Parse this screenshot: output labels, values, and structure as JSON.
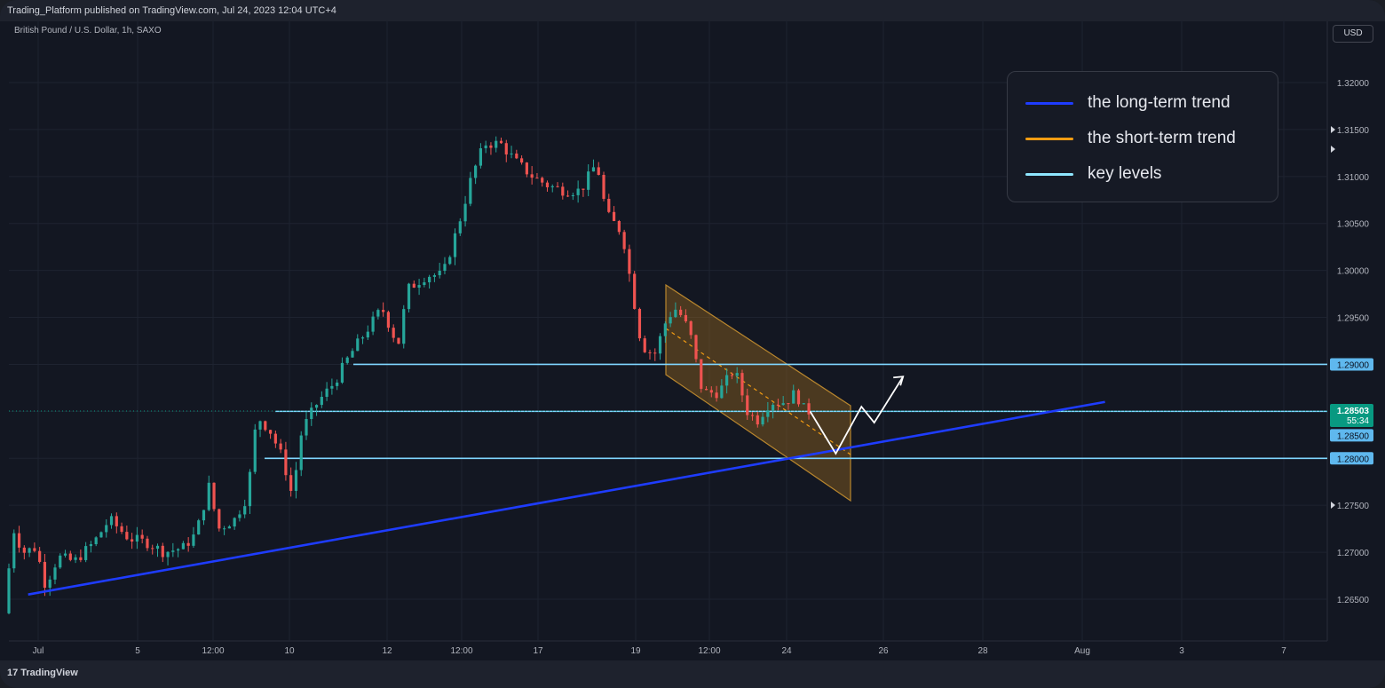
{
  "header": {
    "published": "Trading_Platform published on TradingView.com, Jul 24, 2023 12:04 UTC+4",
    "symbol": "British Pound / U.S. Dollar, 1h, SAXO",
    "currency_button": "USD"
  },
  "footer": {
    "brand": "TradingView",
    "logo_glyph": "17"
  },
  "legend": {
    "items": [
      {
        "label": "the long-term trend",
        "color": "#1e3cff"
      },
      {
        "label": "the short-term trend",
        "color": "#f39c12"
      },
      {
        "label": "key levels",
        "color": "#8ee6ff"
      }
    ]
  },
  "price_badge": {
    "price": "1.28503",
    "countdown": "55:34",
    "color": "#089981"
  },
  "chart_data": {
    "type": "candlestick",
    "title": "British Pound / U.S. Dollar, 1h, SAXO",
    "y_ticks": [
      "1.32000",
      "1.31500",
      "1.31000",
      "1.30500",
      "1.30000",
      "1.29500",
      "1.29000",
      "1.28500",
      "1.28000",
      "1.27500",
      "1.27000",
      "1.26500"
    ],
    "x_ticks": [
      "Jul",
      "5",
      "12:00",
      "10",
      "12",
      "12:00",
      "17",
      "19",
      "12:00",
      "24",
      "26",
      "28",
      "Aug",
      "3",
      "7"
    ],
    "ylim": [
      1.2615,
      1.3245
    ],
    "key_levels": [
      1.29,
      1.285,
      1.28
    ],
    "key_level_labels": [
      "1.29000",
      "1.28500",
      "1.28000"
    ],
    "current_price": 1.28503,
    "price_path": [
      {
        "d": 0,
        "p": 1.2635
      },
      {
        "d": 0.3,
        "p": 1.2725
      },
      {
        "d": 0.6,
        "p": 1.27
      },
      {
        "d": 1.0,
        "p": 1.2705
      },
      {
        "d": 1.3,
        "p": 1.2665
      },
      {
        "d": 1.7,
        "p": 1.2695
      },
      {
        "d": 2.2,
        "p": 1.269
      },
      {
        "d": 2.8,
        "p": 1.271
      },
      {
        "d": 3.3,
        "p": 1.2735
      },
      {
        "d": 3.9,
        "p": 1.2715
      },
      {
        "d": 4.5,
        "p": 1.271
      },
      {
        "d": 5.0,
        "p": 1.27
      },
      {
        "d": 5.6,
        "p": 1.2705
      },
      {
        "d": 6.0,
        "p": 1.272
      },
      {
        "d": 6.4,
        "p": 1.277
      },
      {
        "d": 6.7,
        "p": 1.2725
      },
      {
        "d": 7.2,
        "p": 1.2735
      },
      {
        "d": 7.6,
        "p": 1.276
      },
      {
        "d": 7.9,
        "p": 1.2845
      },
      {
        "d": 8.3,
        "p": 1.283
      },
      {
        "d": 8.7,
        "p": 1.28
      },
      {
        "d": 9.0,
        "p": 1.276
      },
      {
        "d": 9.3,
        "p": 1.283
      },
      {
        "d": 9.8,
        "p": 1.286
      },
      {
        "d": 10.3,
        "p": 1.288
      },
      {
        "d": 10.8,
        "p": 1.291
      },
      {
        "d": 11.3,
        "p": 1.2935
      },
      {
        "d": 11.8,
        "p": 1.296
      },
      {
        "d": 12.3,
        "p": 1.292
      },
      {
        "d": 12.6,
        "p": 1.298
      },
      {
        "d": 13.2,
        "p": 1.2995
      },
      {
        "d": 13.7,
        "p": 1.2995
      },
      {
        "d": 14.2,
        "p": 1.305
      },
      {
        "d": 14.6,
        "p": 1.31
      },
      {
        "d": 15.0,
        "p": 1.3135
      },
      {
        "d": 15.5,
        "p": 1.3135
      },
      {
        "d": 16.0,
        "p": 1.3115
      },
      {
        "d": 16.5,
        "p": 1.31
      },
      {
        "d": 17.0,
        "p": 1.309
      },
      {
        "d": 17.5,
        "p": 1.3085
      },
      {
        "d": 18.0,
        "p": 1.3085
      },
      {
        "d": 18.5,
        "p": 1.3115
      },
      {
        "d": 18.8,
        "p": 1.306
      },
      {
        "d": 19.3,
        "p": 1.304
      },
      {
        "d": 19.6,
        "p": 1.298
      },
      {
        "d": 19.9,
        "p": 1.292
      },
      {
        "d": 20.3,
        "p": 1.291
      },
      {
        "d": 20.7,
        "p": 1.295
      },
      {
        "d": 21.0,
        "p": 1.296
      },
      {
        "d": 21.4,
        "p": 1.2935
      },
      {
        "d": 21.8,
        "p": 1.287
      },
      {
        "d": 22.3,
        "p": 1.287
      },
      {
        "d": 22.8,
        "p": 1.2895
      },
      {
        "d": 23.2,
        "p": 1.285
      },
      {
        "d": 23.5,
        "p": 1.284
      },
      {
        "d": 23.9,
        "p": 1.286
      },
      {
        "d": 24.4,
        "p": 1.286
      },
      {
        "d": 24.7,
        "p": 1.287
      },
      {
        "d": 25.0,
        "p": 1.285
      }
    ],
    "projection": [
      {
        "d": 25.0,
        "p": 1.285
      },
      {
        "d": 25.8,
        "p": 1.2805
      },
      {
        "d": 26.6,
        "p": 1.2855
      },
      {
        "d": 27.0,
        "p": 1.2838
      },
      {
        "d": 27.9,
        "p": 1.2887
      }
    ],
    "long_term_trend": [
      {
        "d": 0.6,
        "p": 1.2655
      },
      {
        "d": 34.2,
        "p": 1.286
      }
    ]
  }
}
